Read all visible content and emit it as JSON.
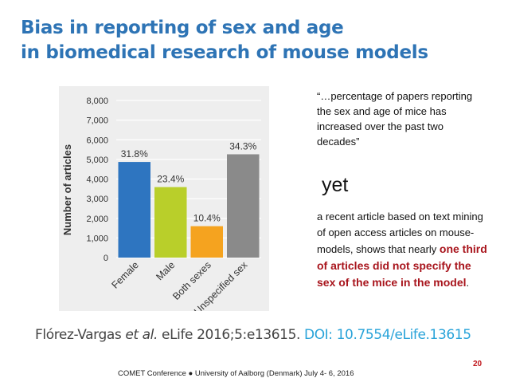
{
  "slide": {
    "title_line1": "Bias in reporting of sex and age",
    "title_line2": "in biomedical research of mouse models",
    "quote": "“…percentage of papers reporting the sex and age of mice has increased over the past two decades”",
    "yet": "yet",
    "body_prefix": "a recent article based on text mining of open access articles on mouse-models, shows that nearly ",
    "body_highlight": "one third of articles did not specify the sex of the mice in the model",
    "body_suffix": ".",
    "citation_authors": "Flórez-Vargas ",
    "citation_etal": "et al.",
    "citation_journal": " eLife 2016;5:e13615. ",
    "citation_doi": "DOI: 10.7554/eLife.13615",
    "page_number": "20",
    "footer": "COMET Conference ● University of Aalborg (Denmark) July 4- 6, 2016"
  },
  "chart_data": {
    "type": "bar",
    "categories": [
      "Female",
      "Male",
      "Both sexes",
      "Unspecified sex"
    ],
    "values": [
      4870,
      3590,
      1600,
      5260
    ],
    "data_labels": [
      "31.8%",
      "23.4%",
      "10.4%",
      "34.3%"
    ],
    "ylabel": "Number of articles",
    "ylim": [
      0,
      8000
    ],
    "yticks": [
      "0",
      "1,000",
      "2,000",
      "3,000",
      "4,000",
      "5,000",
      "6,000",
      "7,000",
      "8,000"
    ],
    "ytick_values": [
      0,
      1000,
      2000,
      3000,
      4000,
      5000,
      6000,
      7000,
      8000
    ],
    "colors": [
      "#2e75c0",
      "#b9cf2a",
      "#f5a31f",
      "#8a8a8a"
    ],
    "grid": true
  }
}
